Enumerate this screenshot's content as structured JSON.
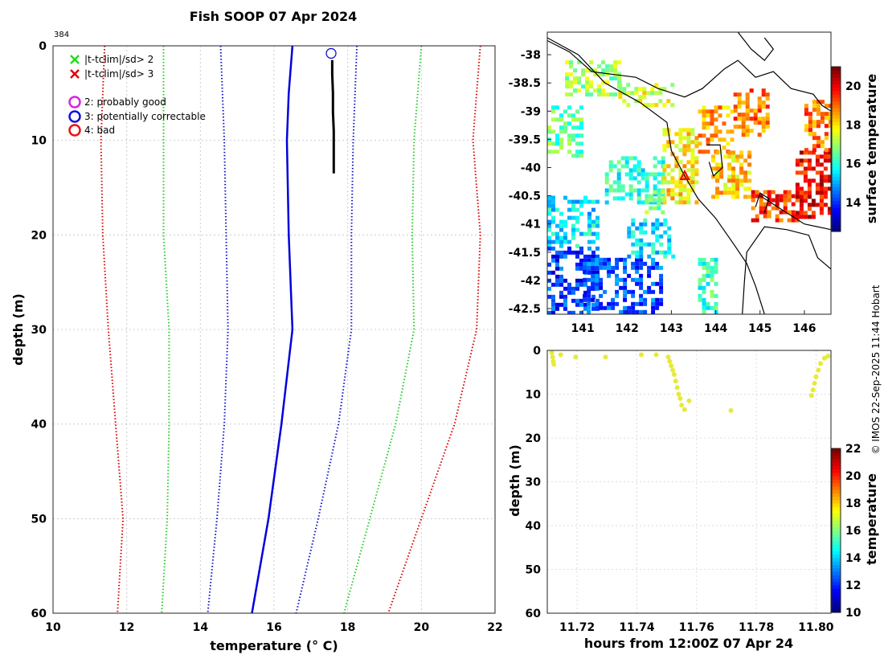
{
  "page": {
    "title": "Fish SOOP 07 Apr 2024",
    "profile_id": "384",
    "watermark": "© IMOS 22-Sep-2025 11:44 Hobart"
  },
  "legend": {
    "items": [
      {
        "marker": "x",
        "color": "#22dd22",
        "label": "|t-tclim|/sd> 2"
      },
      {
        "marker": "x",
        "color": "#dd0000",
        "label": "|t-tclim|/sd> 3"
      },
      {
        "marker": "o",
        "color": "#dd22dd",
        "label": "2: probably good"
      },
      {
        "marker": "o",
        "color": "#1111dd",
        "label": "3: potentially correctable"
      },
      {
        "marker": "o",
        "color": "#ee1111",
        "label": "4: bad"
      }
    ]
  },
  "chart_data": [
    {
      "type": "line",
      "name": "profile",
      "title": "Fish SOOP 07 Apr 2024",
      "xlabel": "temperature (° C)",
      "ylabel": "depth (m)",
      "xlim": [
        10,
        22
      ],
      "ylim": [
        0,
        60
      ],
      "y_reversed": true,
      "xticks": [
        10,
        12,
        14,
        16,
        18,
        20,
        22
      ],
      "yticks": [
        0,
        10,
        20,
        30,
        40,
        50,
        60
      ],
      "grid": true,
      "series": [
        {
          "name": "clim-3sd-left",
          "color": "#dd0000",
          "style": "dotted",
          "points": [
            [
              11.4,
              0
            ],
            [
              11.3,
              10
            ],
            [
              11.35,
              20
            ],
            [
              11.5,
              30
            ],
            [
              11.7,
              40
            ],
            [
              11.9,
              50
            ],
            [
              11.75,
              60
            ]
          ]
        },
        {
          "name": "clim-2sd-left",
          "color": "#22cc22",
          "style": "dotted",
          "points": [
            [
              13.0,
              0
            ],
            [
              13.0,
              10
            ],
            [
              13.0,
              20
            ],
            [
              13.15,
              30
            ],
            [
              13.15,
              40
            ],
            [
              13.1,
              50
            ],
            [
              12.95,
              60
            ]
          ]
        },
        {
          "name": "clim-1sd-left",
          "color": "#1111cc",
          "style": "dotted",
          "points": [
            [
              14.55,
              0
            ],
            [
              14.65,
              10
            ],
            [
              14.7,
              20
            ],
            [
              14.75,
              30
            ],
            [
              14.65,
              40
            ],
            [
              14.45,
              50
            ],
            [
              14.2,
              60
            ]
          ]
        },
        {
          "name": "clim-mean",
          "color": "#0000dd",
          "style": "solid",
          "points": [
            [
              16.5,
              0
            ],
            [
              16.4,
              5
            ],
            [
              16.35,
              10
            ],
            [
              16.4,
              20
            ],
            [
              16.5,
              30
            ],
            [
              16.2,
              40
            ],
            [
              15.85,
              50
            ],
            [
              15.4,
              60
            ]
          ]
        },
        {
          "name": "clim-1sd-right",
          "color": "#1111cc",
          "style": "dotted",
          "points": [
            [
              18.25,
              0
            ],
            [
              18.15,
              10
            ],
            [
              18.1,
              20
            ],
            [
              18.1,
              30
            ],
            [
              17.75,
              40
            ],
            [
              17.2,
              50
            ],
            [
              16.6,
              60
            ]
          ]
        },
        {
          "name": "clim-2sd-right",
          "color": "#22cc22",
          "style": "dotted",
          "points": [
            [
              20.0,
              0
            ],
            [
              19.8,
              10
            ],
            [
              19.75,
              20
            ],
            [
              19.8,
              30
            ],
            [
              19.3,
              40
            ],
            [
              18.6,
              50
            ],
            [
              17.9,
              60
            ]
          ]
        },
        {
          "name": "clim-3sd-right",
          "color": "#dd0000",
          "style": "dotted",
          "points": [
            [
              21.6,
              0
            ],
            [
              21.4,
              10
            ],
            [
              21.6,
              20
            ],
            [
              21.5,
              30
            ],
            [
              20.9,
              40
            ],
            [
              20.0,
              50
            ],
            [
              19.1,
              60
            ]
          ]
        },
        {
          "name": "observed",
          "color": "#000000",
          "style": "solid",
          "points": [
            [
              17.58,
              1.5
            ],
            [
              17.58,
              3
            ],
            [
              17.6,
              5
            ],
            [
              17.6,
              7
            ],
            [
              17.62,
              9
            ],
            [
              17.62,
              11
            ],
            [
              17.62,
              13.5
            ]
          ]
        }
      ],
      "qc_markers": [
        {
          "x": 17.55,
          "y": 0.8,
          "flag": "3: potentially correctable"
        }
      ]
    },
    {
      "type": "heatmap",
      "name": "sst-map",
      "clabel": "surface temperature",
      "xlim": [
        140.2,
        146.6
      ],
      "ylim": [
        -42.6,
        -37.6
      ],
      "xticks": [
        141,
        142,
        143,
        144,
        145,
        146
      ],
      "yticks": [
        -38,
        -38.5,
        -39,
        -39.5,
        -40,
        -40.5,
        -41,
        -41.5,
        -42,
        -42.5
      ],
      "clim": [
        12.5,
        21
      ],
      "cticks": [
        14,
        16,
        18,
        20
      ],
      "drop_location": {
        "lon": 143.3,
        "lat": -40.15
      },
      "patches": [
        {
          "lon": [
            140.6,
            141.8
          ],
          "lat": [
            -38.7,
            -38.1
          ],
          "value": 17.0
        },
        {
          "lon": [
            141.8,
            143.0
          ],
          "lat": [
            -38.9,
            -38.5
          ],
          "value": 17.5
        },
        {
          "lon": [
            140.2,
            141.0
          ],
          "lat": [
            -39.8,
            -38.9
          ],
          "value": 16.5
        },
        {
          "lon": [
            140.2,
            141.3
          ],
          "lat": [
            -41.4,
            -40.5
          ],
          "value": 15.5
        },
        {
          "lon": [
            140.2,
            141.3
          ],
          "lat": [
            -42.6,
            -41.4
          ],
          "value": 14.0
        },
        {
          "lon": [
            141.0,
            142.8
          ],
          "lat": [
            -42.6,
            -41.6
          ],
          "value": 14.2
        },
        {
          "lon": [
            142.0,
            143.0
          ],
          "lat": [
            -41.6,
            -40.9
          ],
          "value": 15.5
        },
        {
          "lon": [
            141.5,
            142.8
          ],
          "lat": [
            -40.6,
            -39.8
          ],
          "value": 16.0
        },
        {
          "lon": [
            142.8,
            143.6
          ],
          "lat": [
            -40.6,
            -39.3
          ],
          "value": 18.0
        },
        {
          "lon": [
            143.6,
            144.4
          ],
          "lat": [
            -39.7,
            -38.9
          ],
          "value": 18.5
        },
        {
          "lon": [
            144.4,
            145.2
          ],
          "lat": [
            -39.4,
            -38.6
          ],
          "value": 19.0
        },
        {
          "lon": [
            143.9,
            144.8
          ],
          "lat": [
            -40.5,
            -39.7
          ],
          "value": 18.2
        },
        {
          "lon": [
            144.8,
            145.8
          ],
          "lat": [
            -40.9,
            -40.4
          ],
          "value": 19.5
        },
        {
          "lon": [
            145.8,
            146.6
          ],
          "lat": [
            -40.9,
            -39.7
          ],
          "value": 20.0
        },
        {
          "lon": [
            146.0,
            146.6
          ],
          "lat": [
            -39.7,
            -38.8
          ],
          "value": 19.0
        },
        {
          "lon": [
            143.6,
            144.0
          ],
          "lat": [
            -42.6,
            -41.6
          ],
          "value": 16.2
        },
        {
          "lon": [
            142.4,
            142.8
          ],
          "lat": [
            -40.8,
            -40.4
          ],
          "value": 16.8
        }
      ]
    },
    {
      "type": "scatter",
      "name": "time-depth",
      "xlabel": "hours from 12:00Z 07 Apr 24",
      "ylabel": "depth (m)",
      "clabel": "temperature",
      "xlim": [
        11.71,
        11.805
      ],
      "ylim": [
        0,
        60
      ],
      "y_reversed": true,
      "xticks": [
        11.72,
        11.74,
        11.76,
        11.78,
        11.8
      ],
      "yticks": [
        0,
        10,
        20,
        30,
        40,
        50,
        60
      ],
      "clim": [
        10,
        22
      ],
      "cticks": [
        10,
        12,
        14,
        16,
        18,
        20,
        22
      ],
      "marker_color": "#e6ea3a",
      "points": [
        [
          11.7115,
          0.5
        ],
        [
          11.7118,
          1.5
        ],
        [
          11.712,
          2.5
        ],
        [
          11.7122,
          3.2
        ],
        [
          11.7145,
          1.0
        ],
        [
          11.7195,
          1.5
        ],
        [
          11.7295,
          1.5
        ],
        [
          11.7415,
          1.0
        ],
        [
          11.7465,
          1.0
        ],
        [
          11.7505,
          1.5
        ],
        [
          11.751,
          2.5
        ],
        [
          11.7515,
          3.5
        ],
        [
          11.752,
          4.5
        ],
        [
          11.7525,
          5.5
        ],
        [
          11.753,
          7.0
        ],
        [
          11.7535,
          8.5
        ],
        [
          11.754,
          10.0
        ],
        [
          11.7545,
          11.0
        ],
        [
          11.755,
          12.5
        ],
        [
          11.756,
          13.5
        ],
        [
          11.7575,
          11.5
        ],
        [
          11.7715,
          13.7
        ],
        [
          11.7985,
          10.3
        ],
        [
          11.799,
          9.0
        ],
        [
          11.7995,
          7.5
        ],
        [
          11.8,
          6.0
        ],
        [
          11.8008,
          4.5
        ],
        [
          11.8015,
          3.0
        ],
        [
          11.8028,
          1.8
        ],
        [
          11.804,
          1.3
        ]
      ]
    }
  ]
}
